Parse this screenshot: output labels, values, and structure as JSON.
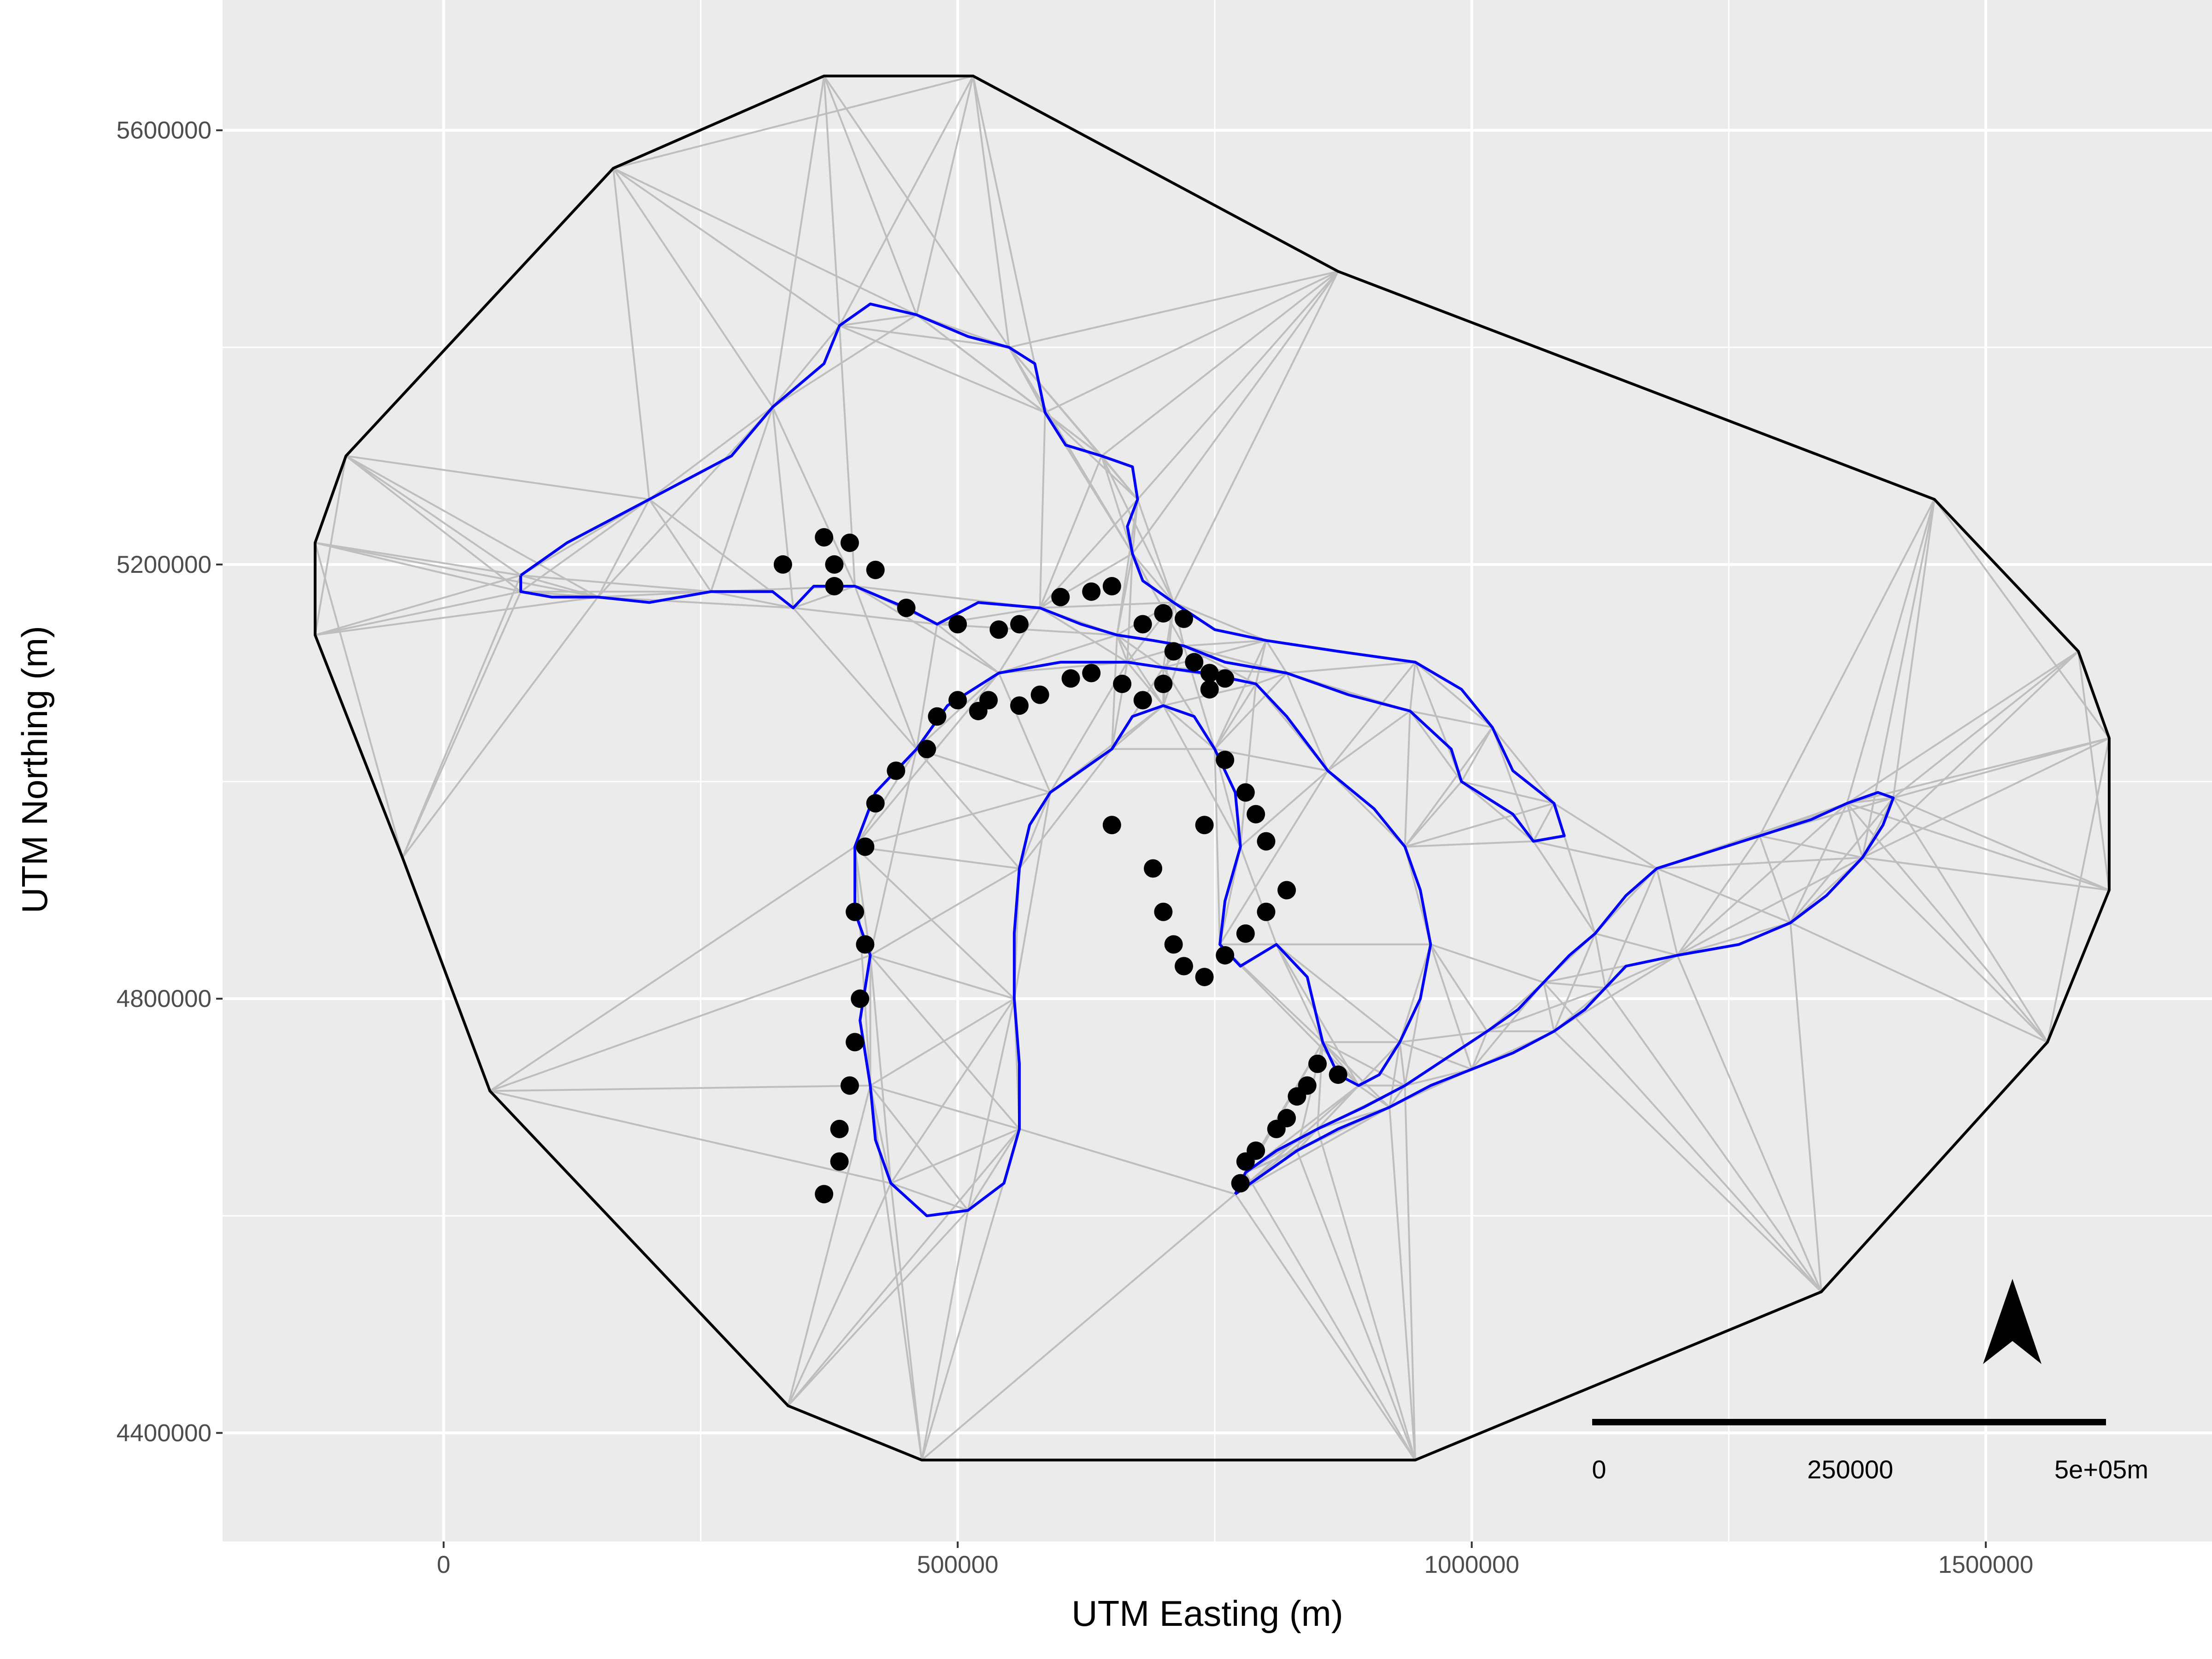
{
  "map": {
    "xlabel": "UTM Easting (m)",
    "ylabel": "UTM Northing (m)",
    "xlim": [
      -215000,
      1720000
    ],
    "ylim": [
      4300000,
      5720000
    ],
    "x_ticks": [
      {
        "value": 0,
        "label": "0"
      },
      {
        "value": 500000,
        "label": "500000"
      },
      {
        "value": 1000000,
        "label": "1000000"
      },
      {
        "value": 1500000,
        "label": "1500000"
      }
    ],
    "y_ticks": [
      {
        "value": 4400000,
        "label": "4400000"
      },
      {
        "value": 4800000,
        "label": "4800000"
      },
      {
        "value": 5200000,
        "label": "5200000"
      },
      {
        "value": 5600000,
        "label": "5600000"
      }
    ],
    "grid": true,
    "colors": {
      "panel": "#ebebeb",
      "grid": "#ffffff",
      "mesh": "#bebebe",
      "hull": "#000000",
      "shoreline": "#0000ff",
      "points": "#000000"
    },
    "hull": [
      [
        370000,
        5650000
      ],
      [
        515000,
        5650000
      ],
      [
        870000,
        5470000
      ],
      [
        1450000,
        5260000
      ],
      [
        1590000,
        5120000
      ],
      [
        1620000,
        5040000
      ],
      [
        1620000,
        4900000
      ],
      [
        1560000,
        4760000
      ],
      [
        1340000,
        4530000
      ],
      [
        945000,
        4375000
      ],
      [
        465000,
        4375000
      ],
      [
        335000,
        4425000
      ],
      [
        45000,
        4715000
      ],
      [
        -40000,
        4930000
      ],
      [
        -125000,
        5135000
      ],
      [
        -125000,
        5220000
      ],
      [
        -95000,
        5300000
      ],
      [
        165000,
        5565000
      ]
    ],
    "shoreline_superior": [
      [
        75000,
        5190000
      ],
      [
        120000,
        5220000
      ],
      [
        200000,
        5260000
      ],
      [
        280000,
        5300000
      ],
      [
        320000,
        5345000
      ],
      [
        370000,
        5385000
      ],
      [
        385000,
        5420000
      ],
      [
        415000,
        5440000
      ],
      [
        460000,
        5430000
      ],
      [
        510000,
        5410000
      ],
      [
        550000,
        5400000
      ],
      [
        575000,
        5385000
      ],
      [
        585000,
        5340000
      ],
      [
        605000,
        5310000
      ],
      [
        640000,
        5300000
      ],
      [
        670000,
        5290000
      ],
      [
        675000,
        5260000
      ],
      [
        665000,
        5235000
      ],
      [
        670000,
        5210000
      ],
      [
        680000,
        5185000
      ],
      [
        710000,
        5165000
      ],
      [
        750000,
        5140000
      ],
      [
        800000,
        5130000
      ],
      [
        870000,
        5120000
      ],
      [
        945000,
        5110000
      ],
      [
        990000,
        5085000
      ],
      [
        1020000,
        5050000
      ],
      [
        1040000,
        5010000
      ],
      [
        1080000,
        4980000
      ],
      [
        1090000,
        4950000
      ],
      [
        1060000,
        4945000
      ],
      [
        1040000,
        4970000
      ],
      [
        990000,
        5000000
      ],
      [
        980000,
        5030000
      ],
      [
        940000,
        5065000
      ],
      [
        880000,
        5080000
      ],
      [
        820000,
        5100000
      ],
      [
        760000,
        5110000
      ],
      [
        720000,
        5125000
      ],
      [
        690000,
        5130000
      ],
      [
        655000,
        5135000
      ],
      [
        620000,
        5145000
      ],
      [
        580000,
        5160000
      ],
      [
        520000,
        5165000
      ],
      [
        480000,
        5145000
      ],
      [
        450000,
        5160000
      ],
      [
        400000,
        5180000
      ],
      [
        360000,
        5180000
      ],
      [
        340000,
        5160000
      ],
      [
        320000,
        5175000
      ],
      [
        260000,
        5175000
      ],
      [
        200000,
        5165000
      ],
      [
        150000,
        5170000
      ],
      [
        105000,
        5170000
      ],
      [
        75000,
        5175000
      ],
      [
        75000,
        5190000
      ]
    ],
    "shoreline_michigan_huron": [
      [
        665000,
        5110000
      ],
      [
        600000,
        5110000
      ],
      [
        540000,
        5100000
      ],
      [
        490000,
        5070000
      ],
      [
        460000,
        5030000
      ],
      [
        420000,
        4990000
      ],
      [
        400000,
        4940000
      ],
      [
        400000,
        4880000
      ],
      [
        415000,
        4840000
      ],
      [
        405000,
        4780000
      ],
      [
        415000,
        4720000
      ],
      [
        420000,
        4670000
      ],
      [
        435000,
        4630000
      ],
      [
        470000,
        4600000
      ],
      [
        510000,
        4605000
      ],
      [
        545000,
        4630000
      ],
      [
        560000,
        4680000
      ],
      [
        560000,
        4740000
      ],
      [
        555000,
        4800000
      ],
      [
        555000,
        4860000
      ],
      [
        560000,
        4920000
      ],
      [
        570000,
        4960000
      ],
      [
        590000,
        4990000
      ],
      [
        620000,
        5010000
      ],
      [
        650000,
        5030000
      ],
      [
        670000,
        5060000
      ],
      [
        700000,
        5070000
      ],
      [
        730000,
        5060000
      ],
      [
        750000,
        5030000
      ],
      [
        770000,
        4990000
      ],
      [
        775000,
        4940000
      ],
      [
        760000,
        4890000
      ],
      [
        755000,
        4850000
      ],
      [
        775000,
        4830000
      ],
      [
        810000,
        4850000
      ],
      [
        840000,
        4820000
      ],
      [
        855000,
        4760000
      ],
      [
        870000,
        4730000
      ],
      [
        890000,
        4720000
      ],
      [
        910000,
        4730000
      ],
      [
        930000,
        4760000
      ],
      [
        950000,
        4800000
      ],
      [
        960000,
        4850000
      ],
      [
        950000,
        4900000
      ],
      [
        935000,
        4940000
      ],
      [
        905000,
        4975000
      ],
      [
        860000,
        5010000
      ],
      [
        820000,
        5060000
      ],
      [
        790000,
        5090000
      ],
      [
        740000,
        5100000
      ],
      [
        700000,
        5105000
      ],
      [
        665000,
        5110000
      ]
    ],
    "shoreline_erie_ontario": [
      [
        770000,
        4620000
      ],
      [
        800000,
        4640000
      ],
      [
        830000,
        4660000
      ],
      [
        870000,
        4680000
      ],
      [
        920000,
        4700000
      ],
      [
        960000,
        4720000
      ],
      [
        1000000,
        4735000
      ],
      [
        1040000,
        4750000
      ],
      [
        1080000,
        4770000
      ],
      [
        1110000,
        4790000
      ],
      [
        1130000,
        4810000
      ],
      [
        1150000,
        4830000
      ],
      [
        1200000,
        4840000
      ],
      [
        1260000,
        4850000
      ],
      [
        1310000,
        4870000
      ],
      [
        1345000,
        4895000
      ],
      [
        1380000,
        4930000
      ],
      [
        1400000,
        4960000
      ],
      [
        1410000,
        4985000
      ],
      [
        1395000,
        4990000
      ],
      [
        1365000,
        4980000
      ],
      [
        1330000,
        4965000
      ],
      [
        1280000,
        4950000
      ],
      [
        1230000,
        4935000
      ],
      [
        1180000,
        4920000
      ],
      [
        1150000,
        4895000
      ],
      [
        1120000,
        4860000
      ],
      [
        1095000,
        4840000
      ],
      [
        1070000,
        4815000
      ],
      [
        1045000,
        4790000
      ],
      [
        1015000,
        4770000
      ],
      [
        975000,
        4745000
      ],
      [
        935000,
        4720000
      ],
      [
        895000,
        4700000
      ],
      [
        850000,
        4680000
      ],
      [
        810000,
        4660000
      ],
      [
        780000,
        4640000
      ],
      [
        770000,
        4620000
      ]
    ],
    "points": [
      [
        330000,
        5200000
      ],
      [
        370000,
        5225000
      ],
      [
        395000,
        5220000
      ],
      [
        380000,
        5200000
      ],
      [
        420000,
        5195000
      ],
      [
        380000,
        5180000
      ],
      [
        450000,
        5160000
      ],
      [
        500000,
        5145000
      ],
      [
        540000,
        5140000
      ],
      [
        560000,
        5145000
      ],
      [
        600000,
        5170000
      ],
      [
        630000,
        5175000
      ],
      [
        650000,
        5180000
      ],
      [
        680000,
        5145000
      ],
      [
        700000,
        5155000
      ],
      [
        720000,
        5150000
      ],
      [
        710000,
        5120000
      ],
      [
        730000,
        5110000
      ],
      [
        745000,
        5100000
      ],
      [
        760000,
        5095000
      ],
      [
        745000,
        5085000
      ],
      [
        700000,
        5090000
      ],
      [
        680000,
        5075000
      ],
      [
        660000,
        5090000
      ],
      [
        630000,
        5100000
      ],
      [
        610000,
        5095000
      ],
      [
        580000,
        5080000
      ],
      [
        560000,
        5070000
      ],
      [
        530000,
        5075000
      ],
      [
        520000,
        5065000
      ],
      [
        500000,
        5075000
      ],
      [
        480000,
        5060000
      ],
      [
        470000,
        5030000
      ],
      [
        440000,
        5010000
      ],
      [
        420000,
        4980000
      ],
      [
        410000,
        4940000
      ],
      [
        400000,
        4880000
      ],
      [
        410000,
        4850000
      ],
      [
        405000,
        4800000
      ],
      [
        400000,
        4760000
      ],
      [
        395000,
        4720000
      ],
      [
        385000,
        4680000
      ],
      [
        385000,
        4650000
      ],
      [
        370000,
        4620000
      ],
      [
        650000,
        4960000
      ],
      [
        690000,
        4920000
      ],
      [
        700000,
        4880000
      ],
      [
        710000,
        4850000
      ],
      [
        720000,
        4830000
      ],
      [
        740000,
        4820000
      ],
      [
        760000,
        4840000
      ],
      [
        780000,
        4860000
      ],
      [
        800000,
        4880000
      ],
      [
        820000,
        4900000
      ],
      [
        740000,
        4960000
      ],
      [
        760000,
        5020000
      ],
      [
        780000,
        4990000
      ],
      [
        790000,
        4970000
      ],
      [
        800000,
        4945000
      ],
      [
        840000,
        4720000
      ],
      [
        850000,
        4740000
      ],
      [
        870000,
        4730000
      ],
      [
        790000,
        4660000
      ],
      [
        780000,
        4650000
      ],
      [
        775000,
        4630000
      ],
      [
        810000,
        4680000
      ],
      [
        820000,
        4690000
      ],
      [
        830000,
        4710000
      ]
    ],
    "scale_bar": {
      "labels": [
        "0",
        "250000",
        "5e+05m"
      ]
    },
    "north_arrow": "north-arrow-icon"
  }
}
